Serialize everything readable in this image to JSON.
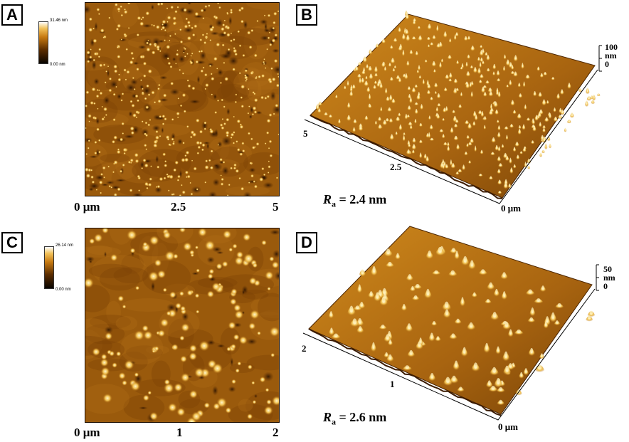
{
  "panels": {
    "A": {
      "letter": "A",
      "colorbar_max": "31.46 nm",
      "colorbar_min": "0.00 nm",
      "x_ticks": [
        "0 μm",
        "2.5",
        "5"
      ]
    },
    "B": {
      "letter": "B",
      "z_ticks": [
        "100",
        "nm",
        "0"
      ],
      "axis_ticks": [
        "5",
        "2.5",
        "0 μm"
      ],
      "ra_symbol": "R",
      "ra_sub": "a",
      "ra_value": " = 2.4 nm"
    },
    "C": {
      "letter": "C",
      "colorbar_max": "26.14 nm",
      "colorbar_min": "0.00 nm",
      "x_ticks": [
        "0 μm",
        "1",
        "2"
      ]
    },
    "D": {
      "letter": "D",
      "z_ticks": [
        "50",
        "nm",
        "0"
      ],
      "axis_ticks": [
        "2",
        "1",
        "0 μm"
      ],
      "ra_symbol": "R",
      "ra_sub": "a",
      "ra_value": " = 2.6 nm"
    }
  },
  "colors": {
    "afm_dark": "#2a1400",
    "afm_mid": "#9a5a0c",
    "afm_light": "#e8b040",
    "afm_peak": "#fff4c0"
  }
}
